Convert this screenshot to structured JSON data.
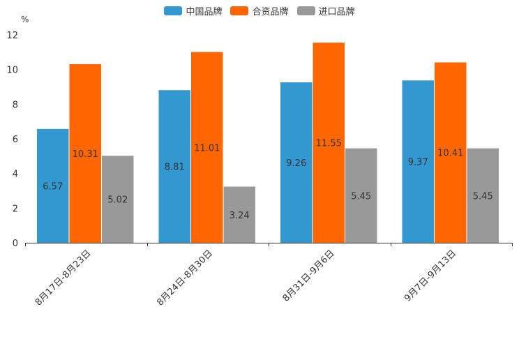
{
  "chart_data": {
    "type": "bar",
    "unit": "%",
    "categories": [
      "8月17日-8月23日",
      "8月24日-8月30日",
      "8月31日-9月6日",
      "9月7日-9月13日"
    ],
    "series": [
      {
        "name": "中国品牌",
        "color": "#3398d0",
        "values": [
          6.57,
          8.81,
          9.26,
          9.37
        ]
      },
      {
        "name": "合资品牌",
        "color": "#ff6600",
        "values": [
          10.31,
          11.01,
          11.55,
          10.41
        ]
      },
      {
        "name": "进口品牌",
        "color": "#999999",
        "values": [
          5.02,
          3.24,
          5.45,
          5.45
        ]
      }
    ],
    "ylim": [
      0,
      12
    ],
    "yticks": [
      "0",
      "2",
      "4",
      "6",
      "8",
      "10",
      "12"
    ]
  }
}
